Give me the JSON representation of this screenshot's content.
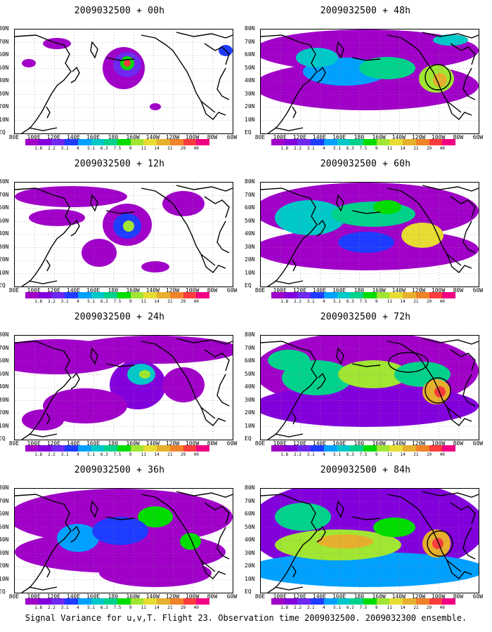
{
  "panels": [
    {
      "title": "2009032500 + 00h",
      "level": 0
    },
    {
      "title": "2009032500 + 48h",
      "level": 4
    },
    {
      "title": "2009032500 + 12h",
      "level": 1
    },
    {
      "title": "2009032500 + 60h",
      "level": 5
    },
    {
      "title": "2009032500 + 24h",
      "level": 2
    },
    {
      "title": "2009032500 + 72h",
      "level": 6
    },
    {
      "title": "2009032500 + 36h",
      "level": 3
    },
    {
      "title": "2009032500 + 84h",
      "level": 7
    }
  ],
  "lat_labels": [
    "80N",
    "70N",
    "60N",
    "50N",
    "40N",
    "30N",
    "20N",
    "10N",
    "EQ"
  ],
  "lon_labels": [
    "80E",
    "100E",
    "120E",
    "140E",
    "160E",
    "180",
    "160W",
    "140W",
    "120W",
    "100W",
    "80W",
    "60W"
  ],
  "colorbar": {
    "labels": [
      "1.8",
      "2.2",
      "3.1",
      "4",
      "5.1",
      "6.3",
      "7.5",
      "9",
      "11",
      "14",
      "21",
      "29",
      "40"
    ],
    "colors": [
      "#a000c8",
      "#8200dc",
      "#6e28f0",
      "#1e3cff",
      "#00a0ff",
      "#00c8c8",
      "#00d28c",
      "#00dc00",
      "#a0e632",
      "#e6dc32",
      "#e6af2d",
      "#f08228",
      "#fa3c3c",
      "#f00082"
    ]
  },
  "footer": "Signal Variance for u,v,T. Flight 23. Observation time 2009032500. 2009032300 ensemble."
}
